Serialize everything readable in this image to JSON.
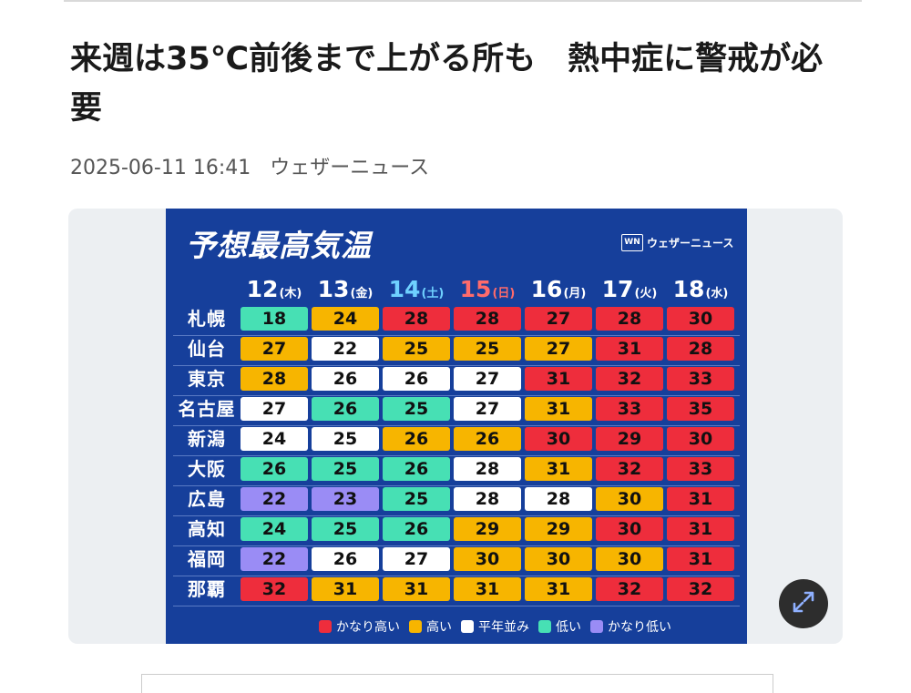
{
  "article": {
    "headline": "来週は35℃前後まで上がる所も　熱中症に警戒が必要",
    "date": "2025-06-11 16:41",
    "source": "ウェザーニュース"
  },
  "forecast": {
    "title": "予想最高気温",
    "brand": {
      "logo": "WN",
      "name": "ウェザーニュース"
    },
    "days": [
      {
        "date": "12",
        "weekday": "(木)",
        "color": "#ffffff"
      },
      {
        "date": "13",
        "weekday": "(金)",
        "color": "#ffffff"
      },
      {
        "date": "14",
        "weekday": "(土)",
        "color": "#6fd1ff"
      },
      {
        "date": "15",
        "weekday": "(日)",
        "color": "#ff6b6b"
      },
      {
        "date": "16",
        "weekday": "(月)",
        "color": "#ffffff"
      },
      {
        "date": "17",
        "weekday": "(火)",
        "color": "#ffffff"
      },
      {
        "date": "18",
        "weekday": "(水)",
        "color": "#ffffff"
      }
    ],
    "cities": [
      {
        "name": "札幌",
        "temps": [
          18,
          24,
          28,
          28,
          27,
          28,
          30
        ],
        "levels": [
          "low",
          "high",
          "very_high",
          "very_high",
          "very_high",
          "very_high",
          "very_high"
        ]
      },
      {
        "name": "仙台",
        "temps": [
          27,
          22,
          25,
          25,
          27,
          31,
          28
        ],
        "levels": [
          "high",
          "normal",
          "high",
          "high",
          "high",
          "very_high",
          "very_high"
        ]
      },
      {
        "name": "東京",
        "temps": [
          28,
          26,
          26,
          27,
          31,
          32,
          33
        ],
        "levels": [
          "high",
          "normal",
          "normal",
          "normal",
          "very_high",
          "very_high",
          "very_high"
        ]
      },
      {
        "name": "名古屋",
        "temps": [
          27,
          26,
          25,
          27,
          31,
          33,
          35
        ],
        "levels": [
          "normal",
          "low",
          "low",
          "normal",
          "high",
          "very_high",
          "very_high"
        ]
      },
      {
        "name": "新潟",
        "temps": [
          24,
          25,
          26,
          26,
          30,
          29,
          30
        ],
        "levels": [
          "normal",
          "normal",
          "high",
          "high",
          "very_high",
          "very_high",
          "very_high"
        ]
      },
      {
        "name": "大阪",
        "temps": [
          26,
          25,
          26,
          28,
          31,
          32,
          33
        ],
        "levels": [
          "low",
          "low",
          "low",
          "normal",
          "high",
          "very_high",
          "very_high"
        ]
      },
      {
        "name": "広島",
        "temps": [
          22,
          23,
          25,
          28,
          28,
          30,
          31
        ],
        "levels": [
          "very_low",
          "very_low",
          "low",
          "normal",
          "normal",
          "high",
          "very_high"
        ]
      },
      {
        "name": "高知",
        "temps": [
          24,
          25,
          26,
          29,
          29,
          30,
          31
        ],
        "levels": [
          "low",
          "low",
          "low",
          "high",
          "high",
          "very_high",
          "very_high"
        ]
      },
      {
        "name": "福岡",
        "temps": [
          22,
          26,
          27,
          30,
          30,
          30,
          31
        ],
        "levels": [
          "very_low",
          "normal",
          "normal",
          "high",
          "high",
          "high",
          "very_high"
        ]
      },
      {
        "name": "那覇",
        "temps": [
          32,
          31,
          31,
          31,
          31,
          32,
          32
        ],
        "levels": [
          "very_high",
          "high",
          "high",
          "high",
          "high",
          "very_high",
          "very_high"
        ]
      }
    ],
    "legend": [
      {
        "key": "very_high",
        "label": "かなり高い",
        "color": "#ee2d3c"
      },
      {
        "key": "high",
        "label": "高い",
        "color": "#f7b500"
      },
      {
        "key": "normal",
        "label": "平年並み",
        "color": "#ffffff"
      },
      {
        "key": "low",
        "label": "低い",
        "color": "#47e0b4"
      },
      {
        "key": "very_low",
        "label": "かなり低い",
        "color": "#9a8cf5"
      }
    ]
  },
  "ui": {
    "expand_icon": "expand-icon"
  }
}
